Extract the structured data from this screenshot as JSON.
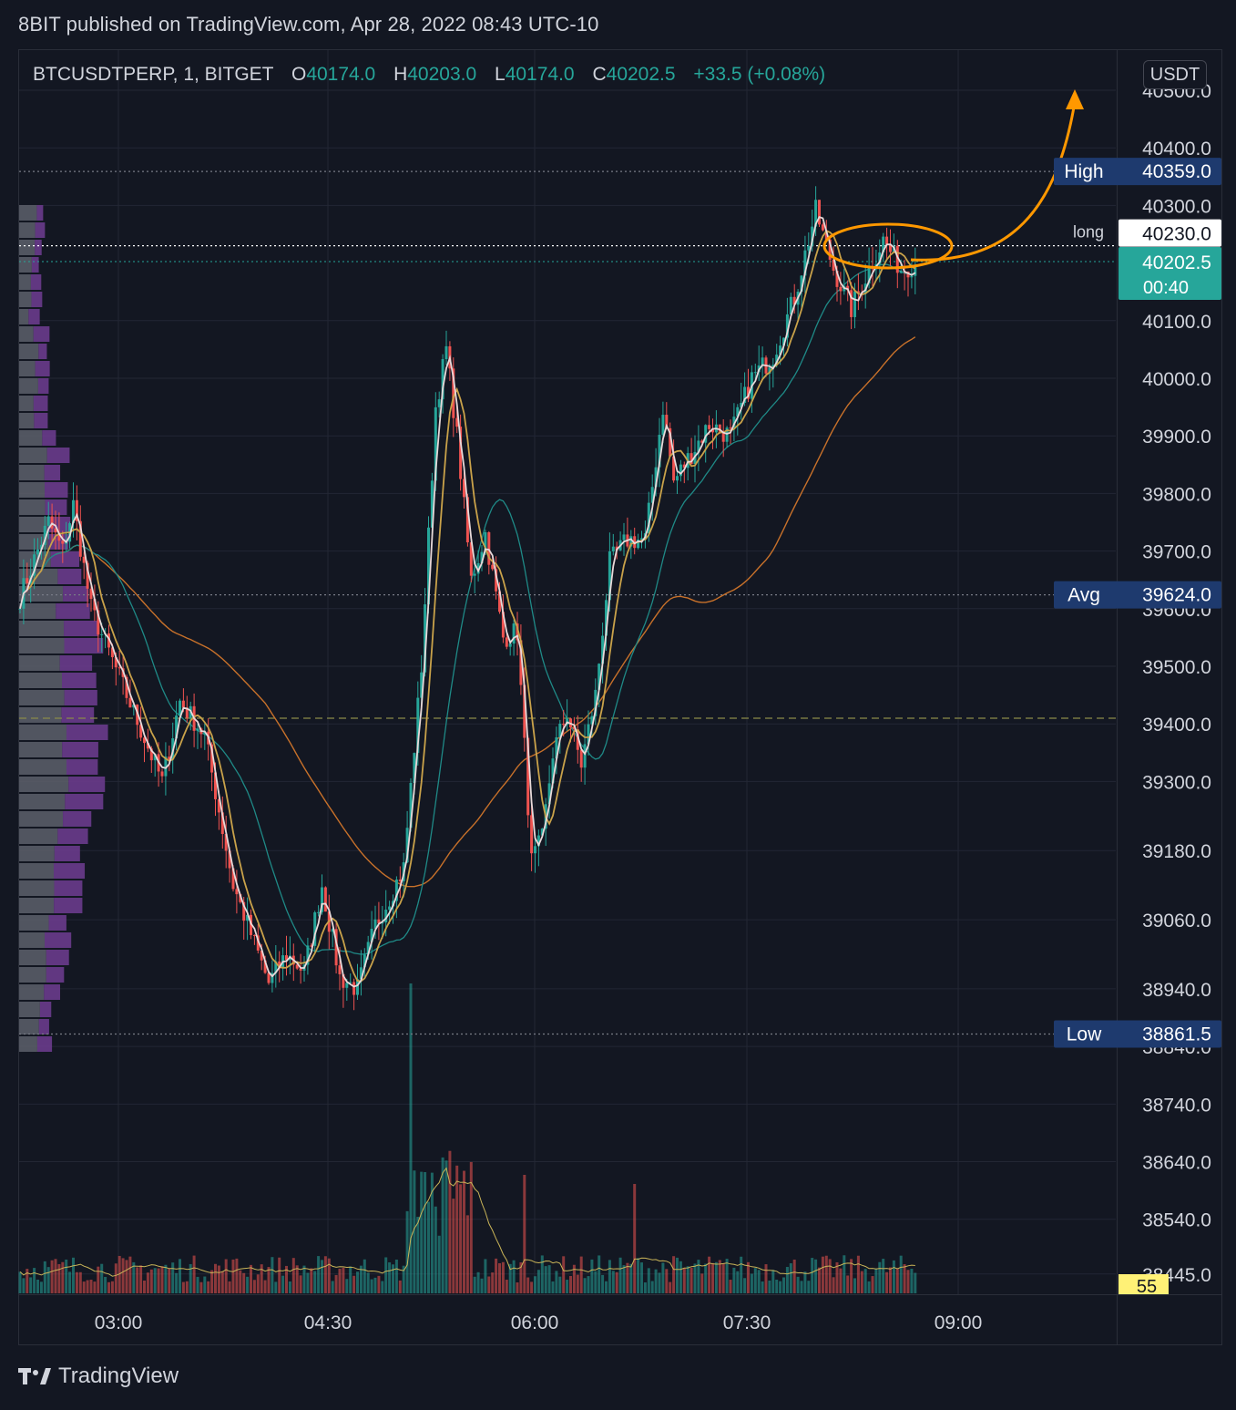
{
  "header": {
    "publish_line": "8BIT published on TradingView.com, Apr 28, 2022 08:43 UTC-10"
  },
  "legend": {
    "symbol": "BTCUSDTPERP, 1, BITGET",
    "open_label": "O",
    "open": "40174.0",
    "high_label": "H",
    "high": "40203.0",
    "low_label": "L",
    "low": "40174.0",
    "close_label": "C",
    "close": "40202.5",
    "change": "+33.5 (+0.08%)"
  },
  "currency": "USDT",
  "footer": {
    "brand": "TradingView",
    "logo_icon": "tradingview-logo-icon"
  },
  "colors": {
    "background": "#131722",
    "up": "#26a69a",
    "down": "#ef5350",
    "annotation": "#ff9800",
    "label_bg": "#1e3a6e",
    "volume_ma": "#c9b458"
  },
  "chart_data": {
    "type": "candlestick",
    "price_axis": {
      "ticks": [
        "40500.0",
        "40400.0",
        "40300.0",
        "40100.0",
        "40000.0",
        "39900.0",
        "39800.0",
        "39700.0",
        "39600.0",
        "39500.0",
        "39400.0",
        "39300.0",
        "39180.0",
        "39060.0",
        "38940.0",
        "38840.0",
        "38740.0",
        "38640.0",
        "38540.0",
        "38445.0"
      ],
      "tick_values": [
        40500,
        40400,
        40300,
        40100,
        40000,
        39900,
        39800,
        39700,
        39600,
        39500,
        39400,
        39300,
        39180,
        39060,
        38940,
        38840,
        38740,
        38640,
        38540,
        38445
      ]
    },
    "time_axis": {
      "labels": [
        "03:00",
        "04:30",
        "06:00",
        "07:30",
        "09:00"
      ]
    },
    "levels": [
      {
        "label": "High",
        "value": "40359.0",
        "price": 40359
      },
      {
        "label": "long",
        "value": "40230.0",
        "price": 40230
      },
      {
        "label": "Avg",
        "value": "39624.0",
        "price": 39624
      },
      {
        "label": "Low",
        "value": "38861.5",
        "price": 38861.5
      }
    ],
    "last_price": {
      "value": "40202.5",
      "countdown": "00:40",
      "price": 40202.5
    },
    "volume_badge": "55",
    "key_points": [
      {
        "t": 0,
        "p": 39620
      },
      {
        "t": 8,
        "p": 39750
      },
      {
        "t": 12,
        "p": 39700
      },
      {
        "t": 15,
        "p": 39780
      },
      {
        "t": 20,
        "p": 39600
      },
      {
        "t": 30,
        "p": 39450
      },
      {
        "t": 40,
        "p": 39300
      },
      {
        "t": 45,
        "p": 39440
      },
      {
        "t": 52,
        "p": 39380
      },
      {
        "t": 60,
        "p": 39120
      },
      {
        "t": 70,
        "p": 38950
      },
      {
        "t": 75,
        "p": 39000
      },
      {
        "t": 80,
        "p": 38970
      },
      {
        "t": 85,
        "p": 39120
      },
      {
        "t": 90,
        "p": 38960
      },
      {
        "t": 95,
        "p": 38940
      },
      {
        "t": 100,
        "p": 39050
      },
      {
        "t": 108,
        "p": 39150
      },
      {
        "t": 113,
        "p": 39500
      },
      {
        "t": 117,
        "p": 39950
      },
      {
        "t": 120,
        "p": 40050
      },
      {
        "t": 123,
        "p": 39900
      },
      {
        "t": 127,
        "p": 39650
      },
      {
        "t": 131,
        "p": 39730
      },
      {
        "t": 136,
        "p": 39550
      },
      {
        "t": 140,
        "p": 39560
      },
      {
        "t": 144,
        "p": 39160
      },
      {
        "t": 147,
        "p": 39200
      },
      {
        "t": 150,
        "p": 39350
      },
      {
        "t": 154,
        "p": 39420
      },
      {
        "t": 158,
        "p": 39330
      },
      {
        "t": 162,
        "p": 39450
      },
      {
        "t": 166,
        "p": 39680
      },
      {
        "t": 171,
        "p": 39720
      },
      {
        "t": 176,
        "p": 39720
      },
      {
        "t": 181,
        "p": 39950
      },
      {
        "t": 184,
        "p": 39820
      },
      {
        "t": 188,
        "p": 39860
      },
      {
        "t": 194,
        "p": 39920
      },
      {
        "t": 200,
        "p": 39900
      },
      {
        "t": 206,
        "p": 40000
      },
      {
        "t": 212,
        "p": 40040
      },
      {
        "t": 218,
        "p": 40140
      },
      {
        "t": 224,
        "p": 40290
      },
      {
        "t": 229,
        "p": 40190
      },
      {
        "t": 234,
        "p": 40120
      },
      {
        "t": 239,
        "p": 40190
      },
      {
        "t": 243,
        "p": 40240
      },
      {
        "t": 248,
        "p": 40190
      },
      {
        "t": 252,
        "p": 40200
      }
    ]
  }
}
